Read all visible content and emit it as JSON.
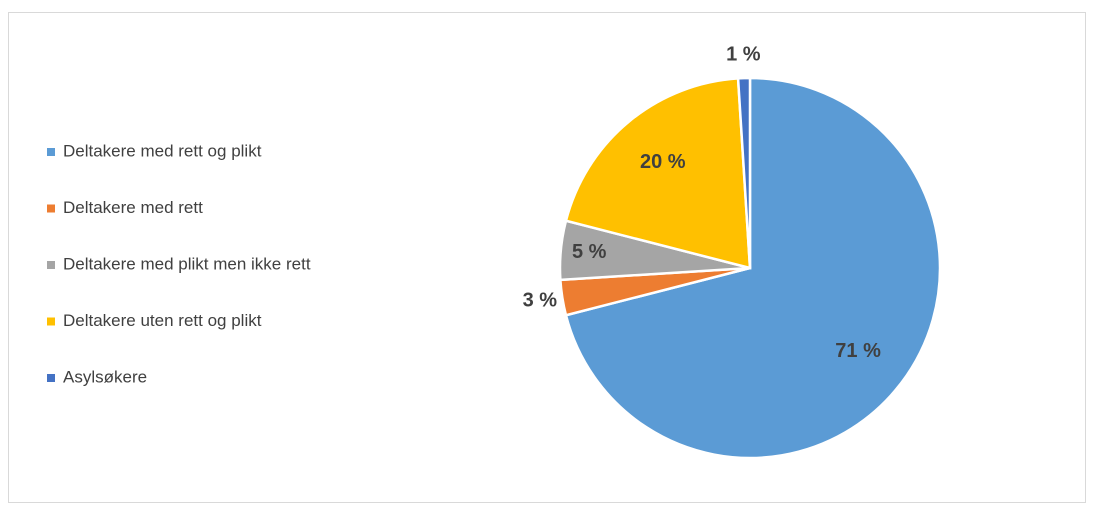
{
  "chart_data": {
    "type": "pie",
    "categories": [
      "Deltakere med rett og plikt",
      "Deltakere med rett",
      "Deltakere med plikt men ikke rett",
      "Deltakere uten rett og plikt",
      "Asylsøkere"
    ],
    "values": [
      71,
      3,
      5,
      20,
      1
    ],
    "value_labels": [
      "71 %",
      "3 %",
      "5 %",
      "20 %",
      "1 %"
    ],
    "colors": [
      "#5b9bd5",
      "#ed7d31",
      "#a5a5a5",
      "#ffc000",
      "#4472c4"
    ],
    "legend": "left"
  }
}
